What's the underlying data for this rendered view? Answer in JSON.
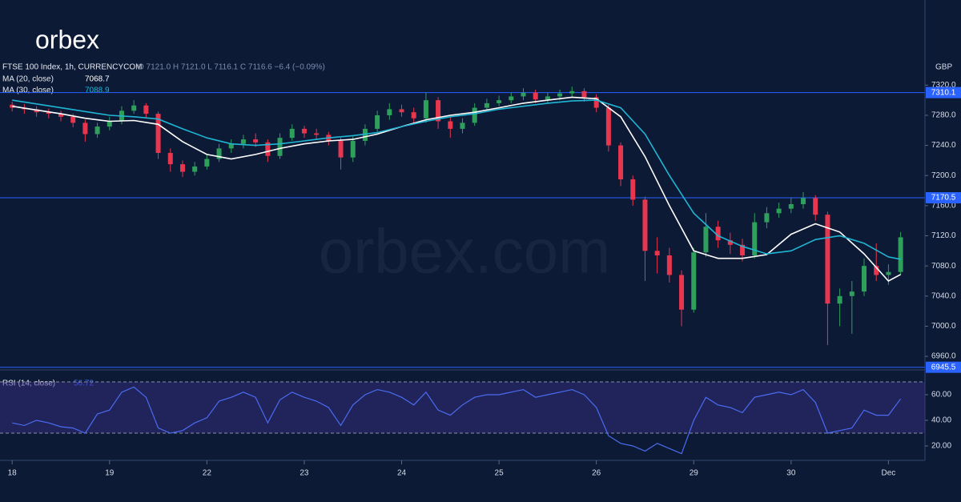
{
  "brand": {
    "logo": "orbex",
    "watermark": "orbex.com"
  },
  "chart_data": [
    {
      "type": "candlestick",
      "title": "FTSE 100 Index, 1h, CURRENCYCOM",
      "ohlc_legend": "O 7121.0  H 7121.0  L 7116.1  C 7116.6  −6.4 (−0.09%)",
      "y_unit": "GBP",
      "up_color": "#2ea05c",
      "down_color": "#e8364f",
      "open": [
        7294,
        7290,
        7288,
        7284,
        7282,
        7278,
        7270,
        7255,
        7265,
        7272,
        7286,
        7293,
        7282,
        7230,
        7215,
        7205,
        7212,
        7222,
        7236,
        7242,
        7248,
        7244,
        7226,
        7250,
        7262,
        7256,
        7254,
        7246,
        7224,
        7246,
        7262,
        7280,
        7288,
        7284,
        7276,
        7300,
        7272,
        7262,
        7270,
        7290,
        7296,
        7300,
        7305,
        7310,
        7301,
        7305,
        7309,
        7312,
        7304,
        7290,
        7240,
        7195,
        7168,
        7100,
        7094,
        7068,
        7022,
        7098,
        7132,
        7114,
        7108,
        7094,
        7138,
        7150,
        7156,
        7162,
        7170,
        7148,
        7030,
        7040,
        7046,
        7080,
        7068,
        7072
      ],
      "high": [
        7298,
        7295,
        7292,
        7289,
        7286,
        7282,
        7274,
        7270,
        7278,
        7292,
        7300,
        7296,
        7285,
        7236,
        7220,
        7218,
        7228,
        7242,
        7248,
        7254,
        7256,
        7248,
        7256,
        7268,
        7266,
        7262,
        7258,
        7250,
        7252,
        7268,
        7286,
        7296,
        7294,
        7290,
        7310,
        7304,
        7278,
        7276,
        7296,
        7302,
        7306,
        7310,
        7316,
        7314,
        7310,
        7314,
        7318,
        7316,
        7308,
        7294,
        7244,
        7200,
        7172,
        7118,
        7104,
        7074,
        7104,
        7150,
        7140,
        7124,
        7116,
        7150,
        7158,
        7164,
        7170,
        7178,
        7174,
        7152,
        7050,
        7060,
        7090,
        7110,
        7082,
        7125
      ],
      "low": [
        7285,
        7282,
        7278,
        7276,
        7272,
        7264,
        7245,
        7250,
        7260,
        7268,
        7282,
        7276,
        7222,
        7205,
        7198,
        7200,
        7208,
        7218,
        7230,
        7236,
        7238,
        7218,
        7222,
        7246,
        7250,
        7248,
        7240,
        7208,
        7218,
        7240,
        7258,
        7274,
        7278,
        7268,
        7270,
        7262,
        7250,
        7256,
        7266,
        7286,
        7292,
        7296,
        7300,
        7296,
        7296,
        7300,
        7304,
        7298,
        7284,
        7232,
        7186,
        7160,
        7060,
        7070,
        7058,
        7000,
        7018,
        7092,
        7104,
        7096,
        7086,
        7090,
        7130,
        7144,
        7150,
        7156,
        7140,
        6975,
        7000,
        6990,
        7040,
        7060,
        7055,
        7068
      ],
      "close": [
        7290,
        7288,
        7284,
        7282,
        7278,
        7270,
        7255,
        7265,
        7272,
        7286,
        7293,
        7282,
        7230,
        7215,
        7205,
        7212,
        7222,
        7236,
        7242,
        7248,
        7244,
        7226,
        7250,
        7262,
        7256,
        7254,
        7246,
        7224,
        7246,
        7262,
        7280,
        7288,
        7284,
        7276,
        7300,
        7272,
        7262,
        7270,
        7290,
        7296,
        7300,
        7305,
        7310,
        7301,
        7305,
        7309,
        7312,
        7304,
        7290,
        7240,
        7195,
        7168,
        7100,
        7094,
        7068,
        7022,
        7098,
        7132,
        7114,
        7108,
        7094,
        7138,
        7150,
        7156,
        7162,
        7170,
        7148,
        7030,
        7040,
        7046,
        7080,
        7068,
        7072,
        7118
      ],
      "series": [
        {
          "name": "MA (20, close)",
          "color": "#ffffff",
          "x": [
            0,
            2,
            4,
            6,
            8,
            10,
            12,
            14,
            16,
            18,
            20,
            22,
            24,
            26,
            28,
            30,
            32,
            34,
            36,
            38,
            40,
            42,
            44,
            46,
            48,
            50,
            52,
            54,
            56,
            58,
            60,
            62,
            64,
            66,
            68,
            70,
            72,
            73
          ],
          "values": [
            7292,
            7287,
            7282,
            7276,
            7272,
            7273,
            7268,
            7245,
            7228,
            7222,
            7228,
            7236,
            7242,
            7246,
            7248,
            7255,
            7265,
            7274,
            7280,
            7284,
            7290,
            7296,
            7300,
            7304,
            7302,
            7278,
            7225,
            7160,
            7100,
            7090,
            7090,
            7095,
            7122,
            7136,
            7125,
            7096,
            7060,
            7068.7
          ]
        },
        {
          "name": "MA (30, close)",
          "color": "#1fb5d3",
          "x": [
            0,
            2,
            4,
            6,
            8,
            10,
            12,
            14,
            16,
            18,
            20,
            22,
            24,
            26,
            28,
            30,
            32,
            34,
            36,
            38,
            40,
            42,
            44,
            46,
            48,
            50,
            52,
            54,
            56,
            58,
            60,
            62,
            64,
            66,
            68,
            70,
            72,
            73
          ],
          "values": [
            7300,
            7295,
            7290,
            7285,
            7280,
            7278,
            7275,
            7262,
            7250,
            7242,
            7240,
            7242,
            7246,
            7250,
            7253,
            7257,
            7265,
            7272,
            7278,
            7282,
            7288,
            7292,
            7296,
            7299,
            7300,
            7290,
            7255,
            7200,
            7150,
            7120,
            7106,
            7096,
            7100,
            7115,
            7120,
            7110,
            7092,
            7088.9
          ]
        }
      ],
      "levels": [
        7310.1,
        7170.5,
        6945.5
      ],
      "level_color": "#2962ff",
      "ylim": [
        6942,
        7433
      ],
      "yticks": [
        {
          "value": 6960,
          "label": "6960.0"
        },
        {
          "value": 7000,
          "label": "7000.0"
        },
        {
          "value": 7040,
          "label": "7040.0"
        },
        {
          "value": 7080,
          "label": "7080.0"
        },
        {
          "value": 7120,
          "label": "7120.0"
        },
        {
          "value": 7160,
          "label": "7160.0"
        },
        {
          "value": 7200,
          "label": "7200.0"
        },
        {
          "value": 7240,
          "label": "7240.0"
        },
        {
          "value": 7280,
          "label": "7280.0"
        },
        {
          "value": 7320,
          "label": "7320.0"
        }
      ],
      "xlim": [
        -1,
        75
      ],
      "xticks": [
        {
          "value": 0,
          "label": "18"
        },
        {
          "value": 8,
          "label": "19"
        },
        {
          "value": 16,
          "label": "22"
        },
        {
          "value": 24,
          "label": "23"
        },
        {
          "value": 32,
          "label": "24"
        },
        {
          "value": 40,
          "label": "25"
        },
        {
          "value": 48,
          "label": "26"
        },
        {
          "value": 56,
          "label": "29"
        },
        {
          "value": 64,
          "label": "30"
        },
        {
          "value": 72,
          "label": "Dec"
        }
      ]
    },
    {
      "type": "line",
      "title": "RSI (14, close)",
      "series": [
        {
          "name": "RSI",
          "color": "#4a6cf0",
          "values": [
            38,
            36,
            40,
            38,
            35,
            34,
            30,
            45,
            48,
            62,
            66,
            58,
            34,
            30,
            32,
            38,
            42,
            55,
            58,
            62,
            58,
            38,
            56,
            62,
            58,
            55,
            50,
            36,
            52,
            60,
            64,
            62,
            58,
            52,
            62,
            48,
            44,
            52,
            58,
            60,
            60,
            62,
            64,
            58,
            60,
            62,
            64,
            60,
            50,
            28,
            22,
            20,
            16,
            22,
            18,
            14,
            40,
            58,
            52,
            50,
            46,
            58,
            60,
            62,
            60,
            64,
            54,
            30,
            32,
            34,
            48,
            44,
            44,
            56.72
          ]
        }
      ],
      "levels": [
        30,
        70
      ],
      "band_color": "#3b2f8a",
      "ylim": [
        8.75,
        78.75
      ],
      "yticks": [
        {
          "value": 20,
          "label": "20.00"
        },
        {
          "value": 40,
          "label": "40.00"
        },
        {
          "value": 60,
          "label": "60.00"
        }
      ],
      "xlim": [
        -1,
        75
      ]
    }
  ]
}
